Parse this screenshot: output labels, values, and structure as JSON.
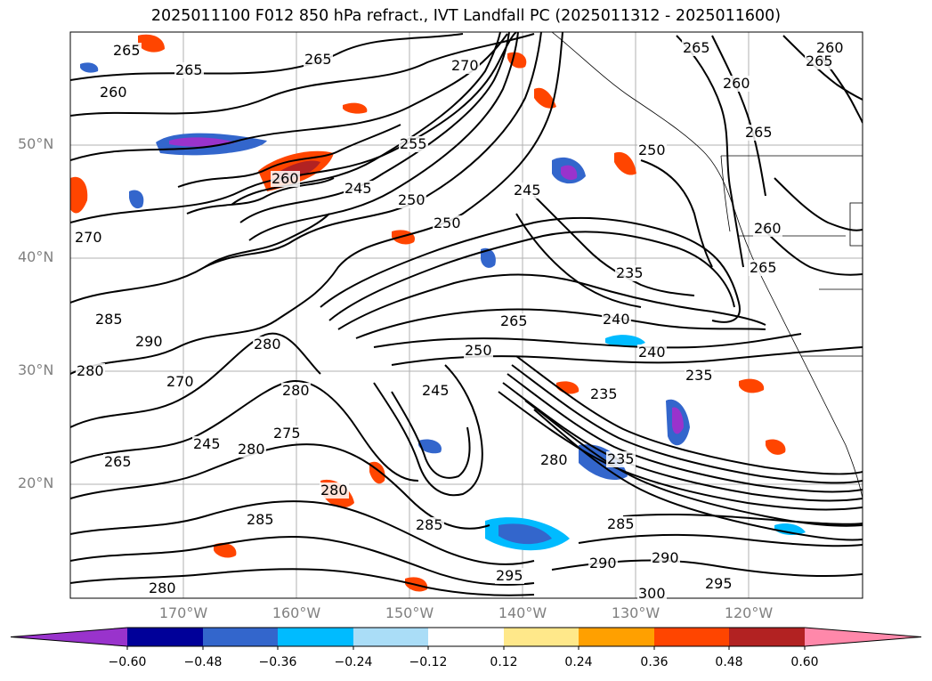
{
  "title": "2025011100 F012 850 hPa refract., IVT Landfall PC (2025011312 - 2025011600)",
  "map": {
    "lat_labels": [
      "50°N",
      "40°N",
      "30°N",
      "20°N"
    ],
    "lon_labels": [
      "170°W",
      "160°W",
      "150°W",
      "140°W",
      "130°W",
      "120°W"
    ],
    "contour_labels": [
      "265",
      "265",
      "265",
      "260",
      "270",
      "260",
      "265",
      "265",
      "260",
      "265",
      "255",
      "250",
      "260",
      "245",
      "250",
      "270",
      "260",
      "245",
      "265",
      "250",
      "285",
      "290",
      "235",
      "240",
      "265",
      "240",
      "250",
      "235",
      "235",
      "280",
      "270",
      "280",
      "245",
      "275",
      "280",
      "245",
      "280",
      "235",
      "280",
      "285",
      "285",
      "290",
      "285",
      "295",
      "295",
      "290",
      "300",
      "280",
      "265",
      "280"
    ]
  },
  "colorbar": {
    "ticks": [
      "−0.60",
      "−0.48",
      "−0.36",
      "−0.24",
      "−0.12",
      "0.12",
      "0.24",
      "0.36",
      "0.48",
      "0.60"
    ],
    "colors": [
      "#9933cc",
      "#000099",
      "#3366cc",
      "#00bbff",
      "#aaddf7",
      "#ffffff",
      "#ffe88a",
      "#ffa000",
      "#ff4500",
      "#b22222",
      "#ff88aa"
    ]
  }
}
